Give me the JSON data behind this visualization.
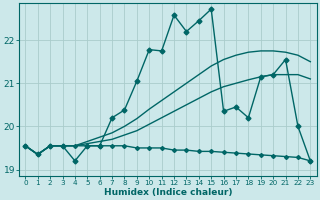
{
  "xlabel": "Humidex (Indice chaleur)",
  "xlim": [
    -0.5,
    23.5
  ],
  "ylim": [
    18.85,
    22.85
  ],
  "yticks": [
    19,
    20,
    21,
    22
  ],
  "xticks": [
    0,
    1,
    2,
    3,
    4,
    5,
    6,
    7,
    8,
    9,
    10,
    11,
    12,
    13,
    14,
    15,
    16,
    17,
    18,
    19,
    20,
    21,
    22,
    23
  ],
  "background_color": "#cce8ea",
  "line_color": "#006666",
  "grid_color": "#aacccc",
  "series": [
    {
      "x": [
        0,
        1,
        2,
        3,
        4,
        5,
        6,
        7,
        8,
        9,
        10,
        11,
        12,
        13,
        14,
        15,
        16,
        17,
        18,
        19,
        20,
        21,
        22,
        23
      ],
      "y": [
        19.55,
        19.35,
        19.55,
        19.55,
        19.55,
        19.55,
        19.55,
        19.55,
        19.55,
        19.5,
        19.5,
        19.5,
        19.45,
        19.45,
        19.42,
        19.42,
        19.4,
        19.38,
        19.36,
        19.34,
        19.32,
        19.3,
        19.28,
        19.2
      ],
      "marker": "D",
      "markersize": 2,
      "linewidth": 1.0
    },
    {
      "x": [
        0,
        1,
        2,
        3,
        4,
        5,
        6,
        7,
        8,
        9,
        10,
        11,
        12,
        13,
        14,
        15,
        16,
        17,
        18,
        19,
        20,
        21,
        22,
        23
      ],
      "y": [
        19.55,
        19.35,
        19.55,
        19.55,
        19.55,
        19.6,
        19.65,
        19.7,
        19.8,
        19.9,
        20.05,
        20.2,
        20.35,
        20.5,
        20.65,
        20.8,
        20.92,
        21.0,
        21.08,
        21.15,
        21.2,
        21.2,
        21.2,
        21.1
      ],
      "marker": null,
      "markersize": 0,
      "linewidth": 1.0
    },
    {
      "x": [
        0,
        1,
        2,
        3,
        4,
        5,
        6,
        7,
        8,
        9,
        10,
        11,
        12,
        13,
        14,
        15,
        16,
        17,
        18,
        19,
        20,
        21,
        22,
        23
      ],
      "y": [
        19.55,
        19.35,
        19.55,
        19.55,
        19.55,
        19.65,
        19.75,
        19.85,
        20.0,
        20.18,
        20.4,
        20.6,
        20.8,
        21.0,
        21.2,
        21.4,
        21.55,
        21.65,
        21.72,
        21.75,
        21.75,
        21.72,
        21.65,
        21.5
      ],
      "marker": null,
      "markersize": 0,
      "linewidth": 1.0
    },
    {
      "x": [
        0,
        1,
        2,
        3,
        4,
        5,
        6,
        7,
        8,
        9,
        10,
        11,
        12,
        13,
        14,
        15,
        16,
        17,
        18,
        19,
        20,
        21,
        22,
        23
      ],
      "y": [
        19.55,
        19.35,
        19.55,
        19.55,
        19.2,
        19.55,
        19.55,
        20.2,
        20.38,
        21.05,
        21.78,
        21.75,
        22.58,
        22.2,
        22.45,
        22.72,
        20.35,
        20.45,
        20.2,
        21.15,
        21.2,
        21.55,
        20.0,
        19.2
      ],
      "marker": "D",
      "markersize": 2.5,
      "linewidth": 1.0
    }
  ]
}
